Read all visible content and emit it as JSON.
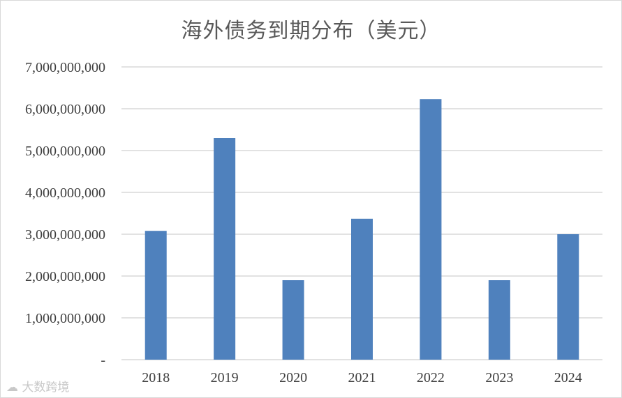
{
  "chart_data": {
    "type": "bar",
    "title": "海外债务到期分布（美元）",
    "categories": [
      "2018",
      "2019",
      "2020",
      "2021",
      "2022",
      "2023",
      "2024"
    ],
    "values": [
      3080000000,
      5300000000,
      1900000000,
      3370000000,
      6230000000,
      1900000000,
      3000000000
    ],
    "ylim": [
      0,
      7000000000
    ],
    "yticks": [
      {
        "value": 0,
        "label": "-"
      },
      {
        "value": 1000000000,
        "label": "1,000,000,000"
      },
      {
        "value": 2000000000,
        "label": "2,000,000,000"
      },
      {
        "value": 3000000000,
        "label": "3,000,000,000"
      },
      {
        "value": 4000000000,
        "label": "4,000,000,000"
      },
      {
        "value": 5000000000,
        "label": "5,000,000,000"
      },
      {
        "value": 6000000000,
        "label": "6,000,000,000"
      },
      {
        "value": 7000000000,
        "label": "7,000,000,000"
      }
    ],
    "grid": true,
    "legend": "none",
    "bar_color": "#4f81bd",
    "grid_color": "#d9d9d9"
  },
  "watermark": {
    "icon": "cloud-logo-icon",
    "text": "大数跨境"
  }
}
